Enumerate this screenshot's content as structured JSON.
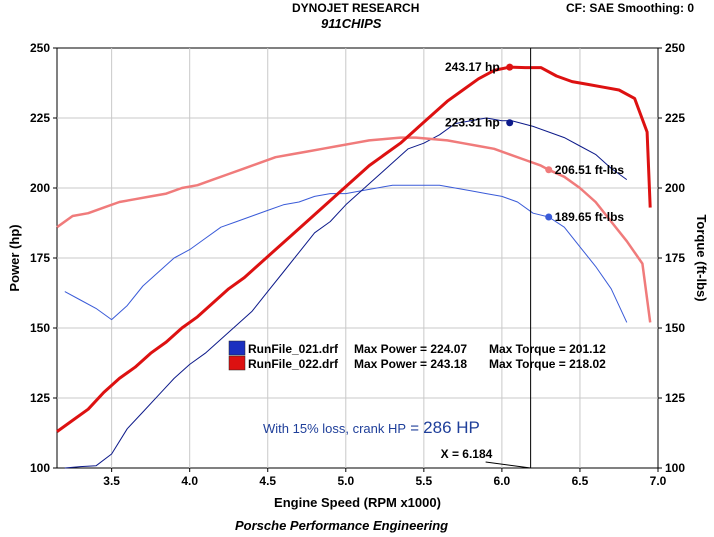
{
  "header": {
    "title": "DYNOJET RESEARCH",
    "subtitle": "911CHIPS",
    "settings": "CF: SAE  Smoothing: 0",
    "footer": "Porsche Performance Engineering"
  },
  "chart_data": {
    "type": "line",
    "xlabel": "Engine Speed (RPM x1000)",
    "ylabel_left": "Power (hp)",
    "ylabel_right": "Torque (ft-lbs)",
    "xlim": [
      3.15,
      7.0
    ],
    "ylim_left": [
      100,
      250
    ],
    "ylim_right": [
      100,
      250
    ],
    "x_ticks": [
      "3.5",
      "4.0",
      "4.5",
      "5.0",
      "5.5",
      "6.0",
      "6.5",
      "7.0"
    ],
    "y_ticks": [
      "100",
      "125",
      "150",
      "175",
      "200",
      "225",
      "250"
    ],
    "grid": true,
    "colors": {
      "run021_power": "#0d1a8a",
      "run021_torque": "#3a5bd8",
      "run022_power": "#dd1111",
      "run022_torque": "#f07b7b",
      "cursor": "#000000"
    },
    "series": [
      {
        "name": "RunFile_021.drf Power",
        "axis": "left",
        "x": [
          3.2,
          3.3,
          3.4,
          3.5,
          3.6,
          3.7,
          3.8,
          3.9,
          4.0,
          4.1,
          4.2,
          4.3,
          4.4,
          4.5,
          4.6,
          4.7,
          4.8,
          4.9,
          5.0,
          5.1,
          5.2,
          5.3,
          5.4,
          5.5,
          5.6,
          5.7,
          5.8,
          5.9,
          6.0,
          6.06,
          6.2,
          6.3,
          6.4,
          6.5,
          6.6,
          6.7,
          6.8
        ],
        "values": [
          100,
          100.5,
          100.8,
          105,
          114,
          120,
          126,
          132,
          137,
          141,
          146,
          151,
          156,
          163,
          170,
          177,
          184,
          188,
          194,
          199,
          204,
          209,
          214,
          216,
          219,
          223,
          224,
          225,
          224,
          224.07,
          222,
          220,
          218,
          215,
          212,
          207,
          203
        ]
      },
      {
        "name": "RunFile_021.drf Torque",
        "axis": "right",
        "x": [
          3.2,
          3.3,
          3.4,
          3.5,
          3.6,
          3.7,
          3.8,
          3.9,
          4.0,
          4.1,
          4.2,
          4.3,
          4.4,
          4.5,
          4.6,
          4.7,
          4.8,
          4.9,
          5.0,
          5.1,
          5.2,
          5.3,
          5.4,
          5.5,
          5.6,
          5.7,
          5.8,
          5.9,
          6.0,
          6.1,
          6.2,
          6.3,
          6.4,
          6.5,
          6.6,
          6.7,
          6.8
        ],
        "values": [
          163,
          160,
          157,
          153,
          158,
          165,
          170,
          175,
          178,
          182,
          186,
          188,
          190,
          192,
          194,
          195,
          197,
          198,
          198,
          199,
          200,
          201,
          201,
          201,
          201,
          200,
          199,
          198,
          197,
          195,
          191,
          189.65,
          186,
          179,
          172,
          164,
          152
        ]
      },
      {
        "name": "RunFile_022.drf Power",
        "axis": "left",
        "x": [
          3.15,
          3.25,
          3.35,
          3.45,
          3.55,
          3.65,
          3.75,
          3.85,
          3.95,
          4.05,
          4.15,
          4.25,
          4.35,
          4.45,
          4.55,
          4.65,
          4.75,
          4.85,
          4.95,
          5.05,
          5.15,
          5.25,
          5.35,
          5.45,
          5.55,
          5.65,
          5.75,
          5.85,
          5.95,
          6.05,
          6.15,
          6.25,
          6.35,
          6.45,
          6.55,
          6.65,
          6.75,
          6.85,
          6.93,
          6.95
        ],
        "values": [
          113,
          117,
          121,
          127,
          132,
          136,
          141,
          145,
          150,
          154,
          159,
          164,
          168,
          173,
          178,
          183,
          188,
          193,
          198,
          203,
          208,
          212,
          216,
          221,
          226,
          231,
          235,
          239,
          242,
          243.18,
          243,
          243,
          240,
          238,
          237,
          236,
          235,
          232,
          220,
          193
        ]
      },
      {
        "name": "RunFile_022.drf Torque",
        "axis": "right",
        "x": [
          3.15,
          3.25,
          3.35,
          3.45,
          3.55,
          3.65,
          3.75,
          3.85,
          3.95,
          4.05,
          4.15,
          4.25,
          4.35,
          4.45,
          4.55,
          4.65,
          4.75,
          4.85,
          4.95,
          5.05,
          5.15,
          5.25,
          5.35,
          5.45,
          5.55,
          5.65,
          5.75,
          5.85,
          5.95,
          6.05,
          6.15,
          6.25,
          6.3,
          6.4,
          6.5,
          6.6,
          6.7,
          6.8,
          6.9,
          6.95
        ],
        "values": [
          186,
          190,
          191,
          193,
          195,
          196,
          197,
          198,
          200,
          201,
          203,
          205,
          207,
          209,
          211,
          212,
          213,
          214,
          215,
          216,
          217,
          217.5,
          218,
          218,
          217.5,
          217,
          216,
          215,
          214,
          212,
          210,
          208,
          206.51,
          204,
          200,
          195,
          188,
          181,
          173,
          152
        ]
      }
    ],
    "annotations": [
      {
        "text": "243.17 hp",
        "series": 2,
        "x": 6.05,
        "y": 243.17,
        "marker_color": "#dd1111"
      },
      {
        "text": "223.31 hp",
        "series": 0,
        "x": 6.05,
        "y": 223.31,
        "marker_color": "#0d1a8a"
      },
      {
        "text": "206.51 ft-lbs",
        "series": 3,
        "x": 6.3,
        "y": 206.51,
        "marker_color": "#f07b7b"
      },
      {
        "text": "189.65 ft-lbs",
        "series": 1,
        "x": 6.3,
        "y": 189.65,
        "marker_color": "#3a5bd8"
      }
    ],
    "cursor": {
      "x": 6.184,
      "label": "X = 6.184"
    },
    "legend": {
      "placement": "center",
      "rows": [
        {
          "swatch_color": "#1a2fc0",
          "file": "RunFile_021.drf",
          "power_text": "Max Power = 224.07",
          "torque_text": "Max Torque = 201.12"
        },
        {
          "swatch_color": "#dd1111",
          "file": "RunFile_022.drf",
          "power_text": "Max Power = 243.18",
          "torque_text": "Max Torque = 218.02"
        }
      ]
    },
    "note": {
      "prefix": "With 15% loss, crank HP",
      "eq": " = ",
      "value": "286 HP",
      "color": "#1f3f9a"
    }
  }
}
